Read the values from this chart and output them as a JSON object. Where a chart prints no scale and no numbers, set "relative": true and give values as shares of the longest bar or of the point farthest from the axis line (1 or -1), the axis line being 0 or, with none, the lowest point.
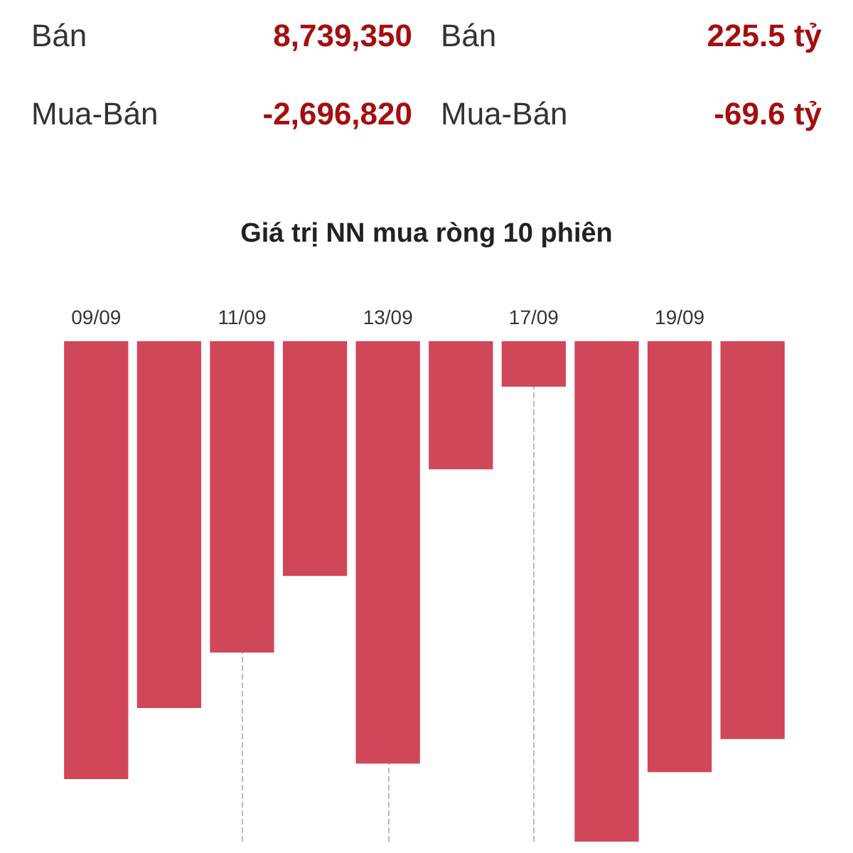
{
  "chart_data": {
    "type": "bar",
    "title": "Giá trị NN mua ròng 10 phiên",
    "annotations": [
      "Bán",
      "8,739,350",
      "Mua-Bán",
      "-2,696,820",
      "Bán",
      "225.5 tỷ",
      "Mua-Bán",
      "-69.6 tỷ"
    ],
    "categories": [
      "09/09",
      null,
      "11/09",
      null,
      "13/09",
      null,
      "17/09",
      null,
      "19/09",
      null
    ],
    "values": [
      -0.875,
      -0.733,
      -0.622,
      -0.469,
      -0.844,
      -0.256,
      -0.091,
      -1,
      -0.861,
      -0.795
    ],
    "color": "#d1475a",
    "relative": true,
    "grid": "x"
  }
}
